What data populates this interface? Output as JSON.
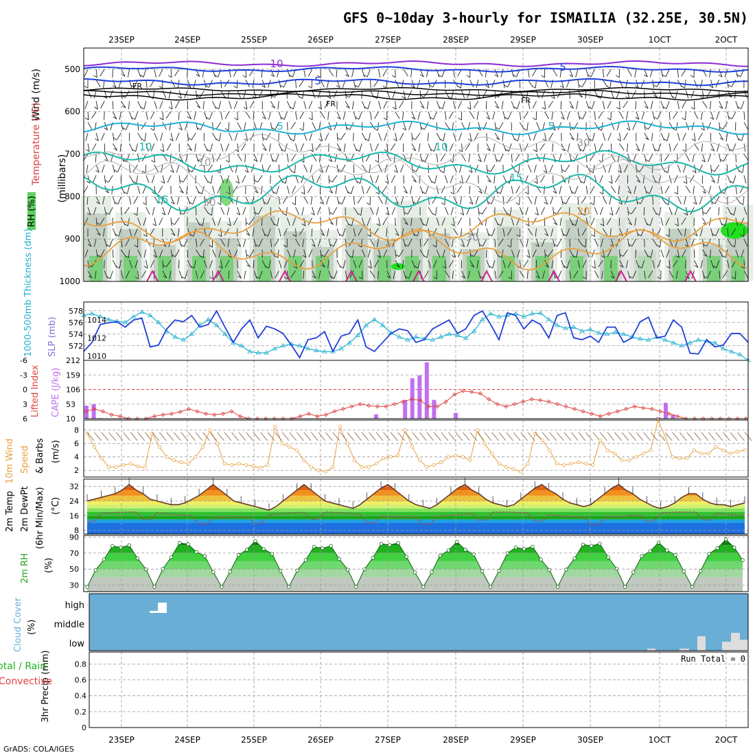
{
  "title": "GFS 0~10day 3-hourly for ISMAILIA (32.25E, 30.5N)",
  "credit": "GrADS: COLA/IGES",
  "dates": [
    "23SEP",
    "24SEP",
    "25SEP",
    "26SEP",
    "27SEP",
    "28SEP",
    "29SEP",
    "30SEP",
    "1OCT",
    "2OCT"
  ],
  "colors": {
    "purple": "#8a2bd6",
    "blue": "#1f3fd9",
    "cyan": "#20b0d0",
    "teal": "#18b8a8",
    "orange": "#e8a040",
    "magenta": "#d02090",
    "rh_dark": "#a8b8a8",
    "rh_green": "#60d060",
    "cloud": "#6aaed6",
    "cape": "#c070f0",
    "lifted": "#e04040",
    "wind": "#e8a040",
    "temp_line": "#6b3a2a",
    "dewpt": "#a05060",
    "rh2m": "#20a020"
  },
  "chart_data": [
    {
      "type": "contour",
      "id": "profile",
      "ylabel": "(millibars)",
      "legend_labels": [
        "Wind (m/s)",
        "Temperature (°C)",
        "RH (%)"
      ],
      "yticks": [
        500,
        600,
        700,
        800,
        900,
        1000
      ],
      "ylim": [
        450,
        1000
      ],
      "contour_labels": [
        {
          "text": "10",
          "color": "purple"
        },
        {
          "text": "5",
          "color": "blue"
        },
        {
          "text": "5",
          "color": "blue"
        },
        {
          "text": "FR",
          "color": "black"
        },
        {
          "text": "FR",
          "color": "black"
        },
        {
          "text": "FR",
          "color": "black"
        },
        {
          "text": "5",
          "color": "cyan"
        },
        {
          "text": "5",
          "color": "cyan"
        },
        {
          "text": "10",
          "color": "teal"
        },
        {
          "text": "10",
          "color": "teal"
        },
        {
          "text": "15",
          "color": "teal"
        },
        {
          "text": "15",
          "color": "teal"
        },
        {
          "text": "20",
          "color": "orange"
        },
        {
          "text": "30",
          "color": "gray"
        },
        {
          "text": "30",
          "color": "gray"
        },
        {
          "text": "10",
          "color": "gray"
        },
        {
          "text": "30",
          "color": "gray"
        }
      ]
    },
    {
      "type": "line",
      "id": "slp",
      "ylabel_left": "1000-500mb Thickness (dm)",
      "ylabel_right": "SLP (mb)",
      "left_ticks": [
        578,
        576,
        574,
        572
      ],
      "right_ticks": [
        1014,
        1012,
        1010
      ],
      "thickness": [
        577.2,
        577.5,
        577.0,
        576.5,
        576.2,
        576.0,
        577.0,
        577.8,
        577.2,
        576.0,
        574.5,
        573.5,
        573.0,
        574.0,
        575.5,
        576.5,
        575.5,
        574.0,
        572.5,
        572.0,
        571.0,
        570.8,
        570.8,
        571.5,
        572.0,
        572.3,
        572.0,
        571.5,
        571.2,
        571.0,
        571.0,
        571.5,
        572.5,
        573.8,
        575.5,
        576.5,
        575.5,
        574.2,
        573.5,
        573.0,
        573.5,
        573.2,
        573.0,
        573.5,
        574.0,
        573.8,
        573.3,
        574.5,
        576.5,
        577.5,
        577.0,
        577.2,
        577.5,
        577.0,
        577.5,
        577.6,
        576.5,
        575.5,
        575.0,
        575.2,
        574.5,
        574.8,
        574.2,
        574.0,
        574.3,
        574.0,
        573.5,
        573.2,
        573.0,
        573.5,
        573.0,
        572.5,
        572.0,
        572.5,
        573.0,
        572.8,
        572.5,
        571.5,
        571.0,
        570.5,
        569.5
      ],
      "slp": [
        1010.5,
        1011.5,
        1013.5,
        1013.7,
        1013.8,
        1013.2,
        1014.0,
        1014.2,
        1011.0,
        1011.2,
        1013.0,
        1014.0,
        1013.8,
        1014.5,
        1013.2,
        1013.5,
        1015.0,
        1013.2,
        1011.5,
        1013.0,
        1014.0,
        1012.0,
        1013.3,
        1013.0,
        1012.5,
        1011.2,
        1009.8,
        1011.8,
        1012.0,
        1012.7,
        1010.5,
        1012.2,
        1012.5,
        1014.0,
        1011.0,
        1010.5,
        1011.5,
        1012.5,
        1013.0,
        1012.8,
        1011.5,
        1011.8,
        1013.0,
        1013.5,
        1014.0,
        1012.5,
        1013.0,
        1014.5,
        1015.0,
        1013.5,
        1011.8,
        1014.8,
        1014.5,
        1013.0,
        1014.0,
        1013.5,
        1012.0,
        1014.5,
        1014.8,
        1012.0,
        1011.8,
        1012.2,
        1011.5,
        1013.2,
        1013.2,
        1011.5,
        1012.0,
        1013.8,
        1014.3,
        1012.0,
        1012.2,
        1014.0,
        1013.2,
        1010.3,
        1010.2,
        1011.8,
        1011.0,
        1011.2,
        1012.5,
        1012.5,
        1011.5
      ]
    },
    {
      "type": "bar+line",
      "id": "cape",
      "ylabel_left": "Lifted Index",
      "ylabel_right": "CAPE (J/kg)",
      "li_ticks": [
        "-6",
        "-3",
        "0",
        "3",
        "6"
      ],
      "cape_ticks": [
        "212",
        "159",
        "106",
        "53",
        "10"
      ],
      "cape": [
        55,
        60,
        12,
        10,
        8,
        5,
        5,
        0,
        0,
        0,
        0,
        0,
        0,
        0,
        0,
        0,
        0,
        0,
        0,
        0,
        0,
        0,
        0,
        0,
        0,
        0,
        0,
        0,
        0,
        0,
        0,
        0,
        0,
        0,
        0,
        0,
        0,
        0,
        0,
        0,
        25,
        0,
        0,
        0,
        75,
        150,
        160,
        205,
        75,
        0,
        5,
        30,
        0,
        0,
        0,
        0,
        0,
        0,
        0,
        0,
        0,
        0,
        0,
        0,
        0,
        0,
        0,
        0,
        0,
        0,
        0,
        0,
        0,
        0,
        0,
        0,
        0,
        0,
        0,
        15,
        65,
        25,
        0,
        0,
        0,
        3,
        0,
        3,
        0,
        5,
        0,
        8
      ],
      "lifted": [
        4.5,
        4.0,
        4.5,
        5.2,
        5.5,
        6.5,
        6.8,
        6.0,
        5.5,
        5.2,
        5.0,
        4.6,
        4.0,
        4.5,
        5.0,
        5.2,
        5.0,
        4.5,
        5.5,
        6.5,
        7.0,
        7.5,
        7.0,
        6.5,
        6.0,
        5.5,
        5.0,
        5.5,
        5.2,
        4.5,
        4.0,
        3.5,
        3.0,
        3.3,
        3.5,
        3.5,
        3.0,
        2.5,
        2.0,
        2.2,
        3.5,
        3.5,
        2.5,
        1.0,
        0.3,
        0.5,
        0.8,
        2.0,
        3.0,
        3.5,
        3.0,
        2.5,
        2.0,
        2.2,
        2.5,
        3.0,
        3.5,
        4.0,
        4.5,
        5.0,
        5.5,
        5.0,
        4.5,
        4.0,
        3.5,
        3.8,
        4.0,
        4.5,
        5.0,
        5.5,
        6.0,
        6.5,
        6.8,
        7.0,
        7.5,
        8.0,
        8.5,
        8.0
      ]
    },
    {
      "type": "line",
      "id": "wind10",
      "ylabel": "10m Wind Speed & Barbs (m/s)",
      "yticks": [
        8,
        6,
        4,
        2
      ],
      "speed": [
        7.5,
        5.5,
        3.8,
        2.5,
        2.5,
        2.8,
        3.0,
        2.6,
        2.4,
        7.5,
        5.5,
        4.0,
        3.5,
        3.2,
        3.0,
        4.0,
        5.5,
        8.0,
        6.0,
        3.0,
        2.8,
        3.0,
        2.8,
        2.6,
        2.4,
        2.8,
        8.5,
        6.0,
        5.5,
        5.0,
        3.5,
        2.5,
        2.0,
        1.8,
        2.5,
        8.5,
        6.0,
        3.5,
        2.5,
        2.5,
        3.0,
        3.8,
        4.0,
        4.2,
        8.0,
        5.5,
        3.5,
        2.5,
        2.8,
        3.2,
        4.0,
        4.2,
        4.0,
        3.5,
        8.0,
        6.0,
        4.5,
        3.0,
        2.5,
        2.2,
        1.8,
        3.0,
        7.5,
        6.5,
        5.0,
        3.0,
        2.8,
        3.0,
        3.2,
        3.0,
        2.8,
        6.5,
        5.0,
        4.5,
        3.5,
        3.5,
        4.0,
        4.5,
        5.0,
        9.5,
        7.0,
        4.0,
        3.8,
        3.8,
        5.0,
        4.5,
        4.5,
        5.5,
        5.0,
        4.5,
        4.8,
        5.0
      ]
    },
    {
      "type": "area",
      "id": "temp2m",
      "ylabel": "2m Temp 2m DewPt (6hr Min/Max) (°C)",
      "yticks": [
        32,
        24,
        16,
        8
      ],
      "temp": [
        24,
        25,
        26,
        27,
        28,
        30,
        33,
        30,
        28,
        25,
        24,
        23,
        22,
        22,
        23,
        25,
        27,
        30,
        33,
        30,
        27,
        24,
        23,
        22,
        21,
        20,
        19,
        21,
        24,
        27,
        30,
        33,
        30,
        27,
        24,
        23,
        22,
        21,
        20,
        22,
        25,
        28,
        31,
        33,
        30,
        27,
        24,
        22,
        21,
        20,
        22,
        25,
        28,
        31,
        33,
        30,
        28,
        25,
        23,
        22,
        21,
        22,
        25,
        28,
        31,
        33,
        30,
        28,
        25,
        23,
        22,
        21,
        22,
        25,
        28,
        31,
        33,
        30,
        28,
        25,
        23,
        21,
        20,
        21,
        23,
        26,
        28,
        28,
        25,
        23,
        22,
        22,
        21,
        22,
        23
      ]
    },
    {
      "type": "area",
      "id": "rh2m",
      "ylabel": "2m RH (%)",
      "yticks": [
        90,
        70,
        50,
        30
      ]
    },
    {
      "type": "bar",
      "id": "cloud",
      "ylabel": "Cloud Cover (%)",
      "labels": [
        "high",
        "middle",
        "low"
      ]
    },
    {
      "type": "line",
      "id": "precip",
      "ylabel_left": "Total / Rain",
      "ylabel_convective": "Convective",
      "ylabel": "3hr Precip (mm)",
      "yticks": [
        0.8,
        0.6,
        0.4,
        0.2,
        0
      ],
      "run_total": "Run Total = 0"
    }
  ]
}
